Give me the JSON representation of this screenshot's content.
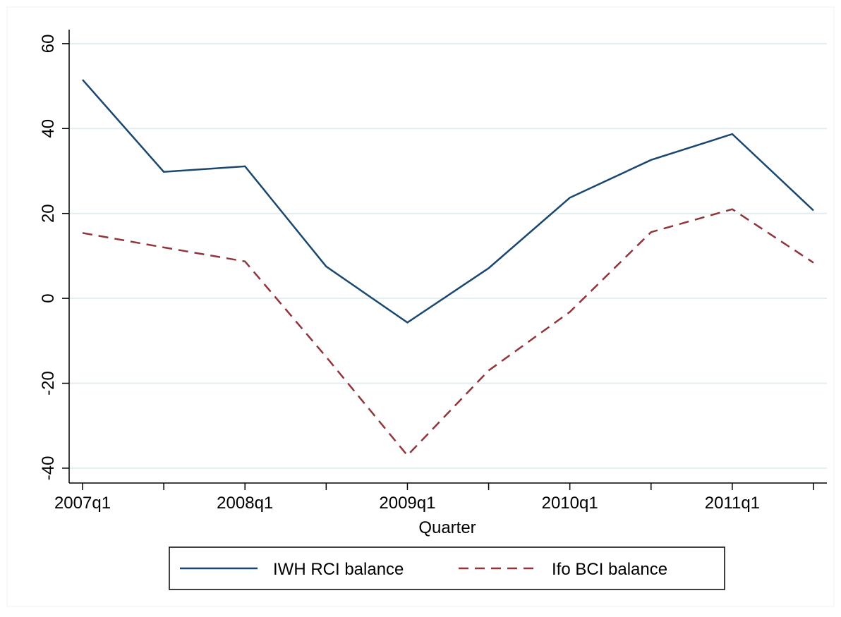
{
  "chart_data": {
    "type": "line",
    "x_label": "Quarter",
    "categories": [
      "2007q1",
      null,
      "2008q1",
      null,
      "2009q1",
      null,
      "2010q1",
      null,
      "2011q1",
      null
    ],
    "series": [
      {
        "name": "IWH RCI balance",
        "color": "#1a476f",
        "dash": "solid",
        "values": [
          51.5,
          29.8,
          31.1,
          7.5,
          -5.7,
          7.1,
          23.7,
          32.6,
          38.7,
          20.7
        ]
      },
      {
        "name": "Ifo BCI balance",
        "color": "#90353b",
        "dash": "dashed",
        "values": [
          15.4,
          12.0,
          8.7,
          -13.8,
          -37.0,
          -17.0,
          -3.2,
          15.6,
          21.0,
          8.4
        ]
      }
    ],
    "ylim": [
      -43.5,
      63.3
    ],
    "yticks": [
      -40,
      -20,
      0,
      20,
      40,
      60
    ],
    "grid": true,
    "legend": "bottom"
  }
}
